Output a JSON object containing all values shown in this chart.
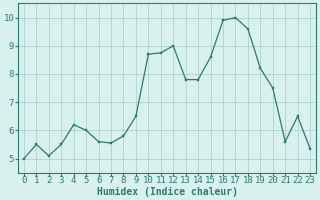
{
  "x": [
    0,
    1,
    2,
    3,
    4,
    5,
    6,
    7,
    8,
    9,
    10,
    11,
    12,
    13,
    14,
    15,
    16,
    17,
    18,
    19,
    20,
    21,
    22,
    23
  ],
  "y": [
    5.0,
    5.5,
    5.1,
    5.5,
    6.2,
    6.0,
    5.6,
    5.55,
    5.8,
    6.5,
    8.7,
    8.75,
    9.0,
    7.8,
    7.8,
    8.6,
    9.9,
    10.0,
    9.6,
    8.2,
    7.5,
    5.6,
    6.5,
    5.35
  ],
  "line_color": "#2d7a6e",
  "marker_color": "#2d7a6e",
  "bg_color": "#d8f0ee",
  "grid_color": "#a8ceca",
  "xlabel": "Humidex (Indice chaleur)",
  "ylim": [
    4.5,
    10.5
  ],
  "xlim": [
    -0.5,
    23.5
  ],
  "yticks": [
    5,
    6,
    7,
    8,
    9,
    10
  ],
  "xticks": [
    0,
    1,
    2,
    3,
    4,
    5,
    6,
    7,
    8,
    9,
    10,
    11,
    12,
    13,
    14,
    15,
    16,
    17,
    18,
    19,
    20,
    21,
    22,
    23
  ],
  "label_fontsize": 7,
  "tick_fontsize": 6.5,
  "tick_color": "#2d7a6e",
  "spine_color": "#2d7a6e"
}
